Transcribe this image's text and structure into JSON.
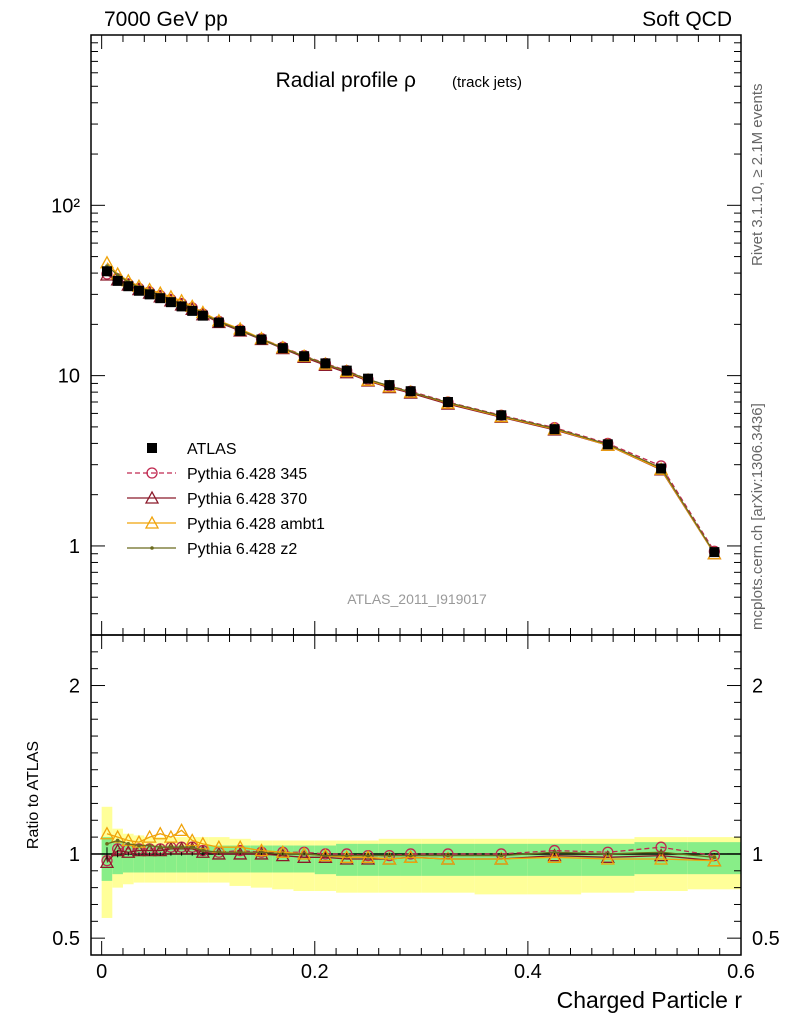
{
  "header": {
    "left": "7000 GeV pp",
    "right": "Soft QCD"
  },
  "side_text": {
    "rivet": "Rivet 3.1.10, ≥ 2.1M events",
    "mcplots": "mcplots.cern.ch [arXiv:1306.3436]"
  },
  "chart_data": {
    "type": "line",
    "title": "Radial profile ρ",
    "subtitle": "(track jets)",
    "analysis_id": "ATLAS_2011_I919017",
    "xlabel": "Charged Particle r",
    "ylabel": "",
    "ratio_ylabel": "Ratio to ATLAS",
    "xlim": [
      -0.01,
      0.6
    ],
    "ylim": [
      0.3,
      1000
    ],
    "yscale": "log",
    "ratio_ylim": [
      0.4,
      2.3
    ],
    "xticks": [
      "0",
      "0.2",
      "0.4",
      "0.6"
    ],
    "yticks": [
      "1",
      "10",
      "10²"
    ],
    "ratio_yticks": [
      "0.5",
      "1",
      "2"
    ],
    "legend_position": "middle-left",
    "x": [
      0.005,
      0.015,
      0.025,
      0.035,
      0.045,
      0.055,
      0.065,
      0.075,
      0.085,
      0.095,
      0.11,
      0.13,
      0.15,
      0.17,
      0.19,
      0.21,
      0.23,
      0.25,
      0.27,
      0.29,
      0.325,
      0.375,
      0.425,
      0.475,
      0.525,
      0.575
    ],
    "series": [
      {
        "name": "ATLAS",
        "color": "#000000",
        "marker": "filled-square",
        "values": [
          41,
          36,
          33.5,
          31.5,
          30,
          28.5,
          27,
          25.5,
          24,
          22.5,
          20.5,
          18.3,
          16.3,
          14.5,
          13,
          11.8,
          10.7,
          9.6,
          8.8,
          8.1,
          7.0,
          5.85,
          4.85,
          3.95,
          2.85,
          0.92
        ],
        "ratio": [
          1,
          1,
          1,
          1,
          1,
          1,
          1,
          1,
          1,
          1,
          1,
          1,
          1,
          1,
          1,
          1,
          1,
          1,
          1,
          1,
          1,
          1,
          1,
          1,
          1,
          1
        ],
        "ratio_err": [
          0.04,
          0.02,
          0.01,
          0.01,
          0.01,
          0.01,
          0.01,
          0.01,
          0.01,
          0.01,
          0.005,
          0.005,
          0.005,
          0.005,
          0.005,
          0.005,
          0.005,
          0.005,
          0.005,
          0.005,
          0.005,
          0.005,
          0.005,
          0.005,
          0.005,
          0.005
        ]
      },
      {
        "name": "Pythia 6.428 345",
        "color": "#c02950",
        "marker": "open-circle",
        "dashed": true,
        "values": [
          39.5,
          37,
          34.5,
          32.5,
          31,
          29.5,
          28,
          26.5,
          25,
          23,
          20.8,
          18.6,
          16.5,
          14.7,
          13.1,
          11.8,
          10.7,
          9.5,
          8.7,
          8.1,
          7.0,
          5.85,
          4.95,
          4.0,
          2.95,
          0.93
        ],
        "ratio": [
          0.96,
          1.03,
          1.03,
          1.03,
          1.03,
          1.03,
          1.04,
          1.04,
          1.04,
          1.02,
          1.01,
          1.02,
          1.01,
          1.01,
          1.01,
          1.0,
          1.0,
          0.99,
          0.99,
          1.0,
          1.0,
          1.0,
          1.02,
          1.01,
          1.04,
          0.99
        ]
      },
      {
        "name": "Pythia 6.428 370",
        "color": "#8b1a2b",
        "marker": "open-triangle",
        "values": [
          39,
          36.5,
          34,
          32,
          30.5,
          29,
          27.5,
          26,
          24.5,
          22.8,
          20.5,
          18.3,
          16.3,
          14.4,
          12.8,
          11.5,
          10.4,
          9.3,
          8.5,
          7.9,
          6.8,
          5.7,
          4.8,
          3.9,
          2.8,
          0.9
        ],
        "ratio": [
          0.95,
          1.02,
          1.01,
          1.02,
          1.02,
          1.02,
          1.03,
          1.03,
          1.03,
          1.01,
          1.0,
          1.0,
          1.0,
          0.99,
          0.98,
          0.98,
          0.97,
          0.97,
          0.97,
          0.98,
          0.97,
          0.97,
          0.99,
          0.98,
          0.99,
          0.96
        ]
      },
      {
        "name": "Pythia 6.428 ambt1",
        "color": "#f0a30a",
        "marker": "open-triangle",
        "values": [
          46,
          39.5,
          36,
          33.5,
          32,
          30.5,
          29,
          27.5,
          25.5,
          23.5,
          21,
          18.8,
          16.5,
          14.6,
          13,
          11.7,
          10.6,
          9.4,
          8.6,
          8.0,
          6.9,
          5.75,
          4.85,
          3.9,
          2.82,
          0.9
        ],
        "ratio": [
          1.12,
          1.1,
          1.08,
          1.07,
          1.1,
          1.12,
          1.1,
          1.14,
          1.08,
          1.06,
          1.04,
          1.04,
          1.02,
          1.01,
          1.0,
          0.99,
          0.98,
          0.98,
          0.97,
          0.98,
          0.97,
          0.97,
          0.98,
          0.97,
          0.97,
          0.96
        ]
      },
      {
        "name": "Pythia 6.428 z2",
        "color": "#6b6b1e",
        "marker": "small-dot",
        "values": [
          44,
          39,
          35.5,
          33,
          31.5,
          29.5,
          28,
          26.5,
          25,
          23,
          20.8,
          18.5,
          16.4,
          14.5,
          13,
          11.7,
          10.6,
          9.5,
          8.7,
          8.0,
          6.95,
          5.8,
          4.9,
          3.95,
          2.87,
          0.91
        ],
        "ratio": [
          1.06,
          1.08,
          1.06,
          1.05,
          1.05,
          1.04,
          1.04,
          1.04,
          1.04,
          1.02,
          1.01,
          1.01,
          1.01,
          1.0,
          1.0,
          0.99,
          0.99,
          0.99,
          0.99,
          0.99,
          0.99,
          0.99,
          1.01,
          1.0,
          1.01,
          0.98
        ]
      }
    ],
    "bands": {
      "x_edges": [
        0.0,
        0.01,
        0.02,
        0.03,
        0.04,
        0.05,
        0.06,
        0.07,
        0.08,
        0.09,
        0.1,
        0.12,
        0.14,
        0.16,
        0.18,
        0.2,
        0.22,
        0.24,
        0.26,
        0.28,
        0.3,
        0.35,
        0.4,
        0.45,
        0.5,
        0.55,
        0.6
      ],
      "inner_color": "#88ee88",
      "outer_color": "#ffff99",
      "inner_lo": [
        0.84,
        0.88,
        0.89,
        0.89,
        0.89,
        0.89,
        0.89,
        0.89,
        0.89,
        0.89,
        0.89,
        0.89,
        0.89,
        0.89,
        0.89,
        0.88,
        0.87,
        0.87,
        0.87,
        0.87,
        0.87,
        0.87,
        0.87,
        0.87,
        0.88,
        0.88
      ],
      "inner_hi": [
        1.1,
        1.07,
        1.06,
        1.06,
        1.05,
        1.05,
        1.05,
        1.05,
        1.05,
        1.05,
        1.05,
        1.05,
        1.05,
        1.05,
        1.05,
        1.05,
        1.06,
        1.06,
        1.06,
        1.06,
        1.06,
        1.06,
        1.06,
        1.06,
        1.07,
        1.07
      ],
      "outer_lo": [
        0.62,
        0.8,
        0.82,
        0.83,
        0.83,
        0.83,
        0.83,
        0.83,
        0.83,
        0.83,
        0.83,
        0.81,
        0.8,
        0.79,
        0.78,
        0.78,
        0.77,
        0.77,
        0.77,
        0.77,
        0.77,
        0.76,
        0.76,
        0.77,
        0.78,
        0.79
      ],
      "outer_hi": [
        1.28,
        1.15,
        1.12,
        1.11,
        1.1,
        1.1,
        1.1,
        1.1,
        1.1,
        1.1,
        1.1,
        1.09,
        1.08,
        1.08,
        1.08,
        1.08,
        1.08,
        1.08,
        1.09,
        1.09,
        1.09,
        1.09,
        1.09,
        1.09,
        1.1,
        1.1
      ]
    }
  }
}
